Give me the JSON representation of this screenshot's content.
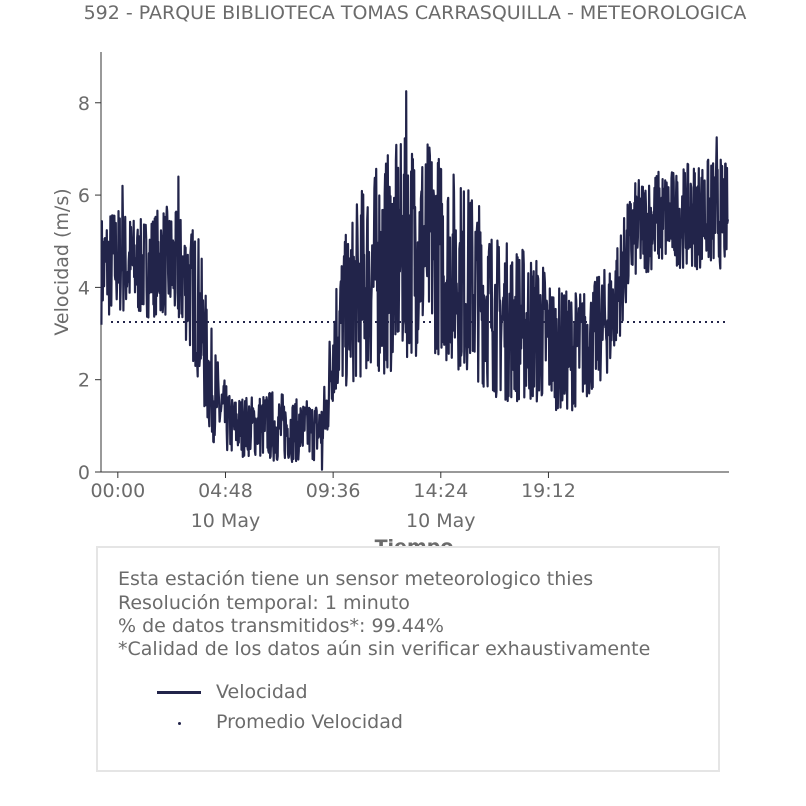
{
  "header": {
    "title": "592 - PARQUE BIBLIOTECA TOMAS CARRASQUILLA - METEOROLOGICA"
  },
  "chart_data": {
    "type": "line",
    "xlabel": "Tiempo",
    "ylabel": "Velocidad (m/s)",
    "ylim": [
      0,
      9.1
    ],
    "xlim_hours": [
      -0.75,
      27.25
    ],
    "y_ticks": [
      0,
      2,
      4,
      6,
      8
    ],
    "x_ticks": [
      {
        "label": "00:00",
        "sublabel": ""
      },
      {
        "label": "04:48",
        "sublabel": "10 May"
      },
      {
        "label": "09:36",
        "sublabel": ""
      },
      {
        "label": "14:24",
        "sublabel": "10 May"
      },
      {
        "label": "19:12",
        "sublabel": ""
      }
    ],
    "x_tick_hours": [
      0,
      4.8,
      9.6,
      14.4,
      19.2
    ],
    "grid": false,
    "series": [
      {
        "name": "Velocidad",
        "color": "#22244a",
        "style": "solid",
        "profile_hours": [
          -0.75,
          0,
          1,
          2,
          3,
          3.6,
          4,
          4.5,
          5,
          6,
          7,
          8,
          9,
          9.3,
          9.6,
          10,
          11,
          12,
          13,
          14,
          15,
          16,
          17,
          18,
          19,
          19.5,
          20,
          21,
          22,
          23,
          24,
          25,
          26,
          27,
          27.25
        ],
        "profile_mean": [
          4.4,
          4.6,
          4.4,
          4.6,
          4.2,
          3.6,
          2.2,
          1.4,
          1.0,
          1.0,
          1.0,
          0.9,
          0.9,
          1.3,
          2.8,
          3.3,
          4.2,
          4.5,
          4.9,
          4.9,
          4.4,
          4.0,
          3.3,
          3.2,
          3.0,
          2.7,
          2.6,
          2.8,
          3.4,
          5.2,
          5.5,
          5.5,
          5.6,
          5.6,
          5.5
        ],
        "profile_amplitude": [
          0.9,
          0.9,
          0.8,
          0.9,
          1.0,
          1.2,
          1.0,
          0.7,
          0.5,
          0.5,
          0.6,
          0.5,
          0.5,
          0.6,
          1.0,
          1.2,
          1.6,
          1.8,
          1.8,
          1.7,
          1.6,
          1.5,
          1.3,
          1.3,
          1.2,
          1.0,
          1.0,
          0.9,
          0.9,
          0.8,
          0.8,
          0.8,
          0.9,
          0.9,
          0.8
        ],
        "spikes": [
          {
            "hour": 12.85,
            "value": 8.25
          },
          {
            "hour": 9.1,
            "value": 0.05
          },
          {
            "hour": 26.7,
            "value": 7.25
          },
          {
            "hour": 0.2,
            "value": 6.2
          },
          {
            "hour": 2.7,
            "value": 6.4
          }
        ]
      },
      {
        "name": "Promedio Velocidad",
        "color": "#22244a",
        "style": "dotted",
        "value": 3.25
      }
    ]
  },
  "info": {
    "lines": [
      "Esta estación tiene un sensor meteorologico thies",
      "Resolución temporal: 1 minuto",
      "% de datos transmitidos*: 99.44%",
      "*Calidad de los datos aún sin verificar exhaustivamente"
    ],
    "legend": [
      "Velocidad",
      "Promedio Velocidad"
    ]
  }
}
